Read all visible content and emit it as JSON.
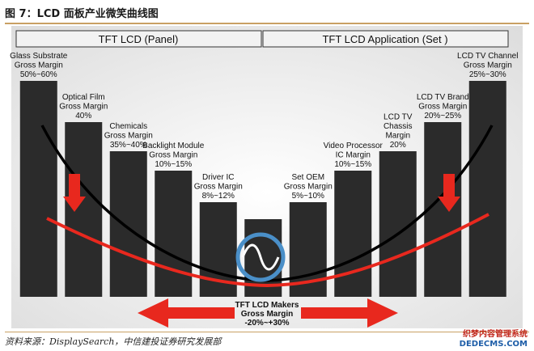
{
  "figure_title": "图 7：LCD  面板产业微笑曲线图",
  "source": "资料来源：DisplaySearch，中信建投证券研究发展部",
  "watermark": {
    "line1": "织梦内容管理系统",
    "line2": "DEDECMS.COM"
  },
  "colors": {
    "bar": "#2b2b2b",
    "header_bg": "#f2f2f2",
    "curve_black": "#000000",
    "curve_red": "#e8281e",
    "arrow_red": "#e8281e",
    "circle_ring": "#4a8fc8",
    "background": "#e6e6e6"
  },
  "chart_data": {
    "type": "bar",
    "headers": {
      "left": "TFT LCD (Panel)",
      "right": "TFT LCD Application (Set )"
    },
    "bars": [
      {
        "lines": [
          "Glass Substrate",
          "Gross Margin",
          "50%~60%"
        ],
        "level": 0.89
      },
      {
        "lines": [
          "Optical Film",
          "Gross Margin",
          "40%"
        ],
        "level": 0.72
      },
      {
        "lines": [
          "Chemicals",
          "Gross Margin",
          "35%~40%"
        ],
        "level": 0.6
      },
      {
        "lines": [
          "Backlight Module",
          "Gross Margin",
          "10%~15%"
        ],
        "level": 0.52
      },
      {
        "lines": [
          "Driver IC",
          "Gross Margin",
          "8%~12%"
        ],
        "level": 0.39
      },
      {
        "lines": [],
        "level": 0.32
      },
      {
        "lines": [
          "Set OEM",
          "Gross Margin",
          "5%~10%"
        ],
        "level": 0.39
      },
      {
        "lines": [
          "Video Processor",
          "IC Margin",
          "10%~15%"
        ],
        "level": 0.52
      },
      {
        "lines": [
          "LCD TV",
          "Chassis",
          "Margin",
          "20%"
        ],
        "level": 0.6
      },
      {
        "lines": [
          "LCD TV Brand",
          "Gross Margin",
          "20%~25%"
        ],
        "level": 0.72
      },
      {
        "lines": [
          "LCD TV Channel",
          "Gross Margin",
          "25%~30%"
        ],
        "level": 0.89
      }
    ],
    "center_label": [
      "TFT LCD Makers",
      "Gross Margin",
      "-20%~+30%"
    ]
  }
}
